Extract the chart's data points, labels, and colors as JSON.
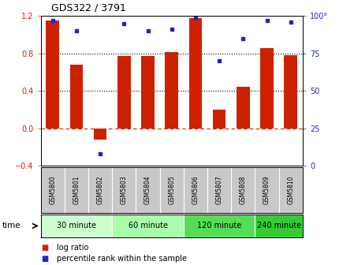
{
  "title": "GDS322 / 3791",
  "samples": [
    "GSM5800",
    "GSM5801",
    "GSM5802",
    "GSM5803",
    "GSM5804",
    "GSM5805",
    "GSM5806",
    "GSM5807",
    "GSM5808",
    "GSM5809",
    "GSM5810"
  ],
  "log_ratio": [
    1.15,
    0.68,
    -0.12,
    0.77,
    0.77,
    0.81,
    1.18,
    0.2,
    0.44,
    0.86,
    0.78
  ],
  "percentile": [
    97,
    90,
    8,
    95,
    90,
    91,
    99,
    70,
    85,
    97,
    96
  ],
  "bar_color": "#cc2200",
  "dot_color": "#2222cc",
  "ylim_left": [
    -0.4,
    1.2
  ],
  "ylim_right": [
    0,
    100
  ],
  "yticks_left": [
    -0.4,
    0.0,
    0.4,
    0.8,
    1.2
  ],
  "yticks_right": [
    0,
    25,
    50,
    75,
    100
  ],
  "yticklabels_right": [
    "0",
    "25",
    "50",
    "75",
    "100°"
  ],
  "dotted_lines": [
    0.4,
    0.8
  ],
  "zero_line": 0.0,
  "groups": [
    {
      "label": "30 minute",
      "start": 0,
      "end": 3
    },
    {
      "label": "60 minute",
      "start": 3,
      "end": 6
    },
    {
      "label": "120 minute",
      "start": 6,
      "end": 9
    },
    {
      "label": "240 minute",
      "start": 9,
      "end": 11
    }
  ],
  "group_colors": [
    "#ccffcc",
    "#aaffaa",
    "#55dd55",
    "#33cc33"
  ],
  "time_label": "time",
  "legend_log_ratio": "log ratio",
  "legend_percentile": "percentile rank within the sample",
  "background_color": "#ffffff",
  "sample_bg_color": "#c8c8c8",
  "zero_line_color": "#cc2200"
}
